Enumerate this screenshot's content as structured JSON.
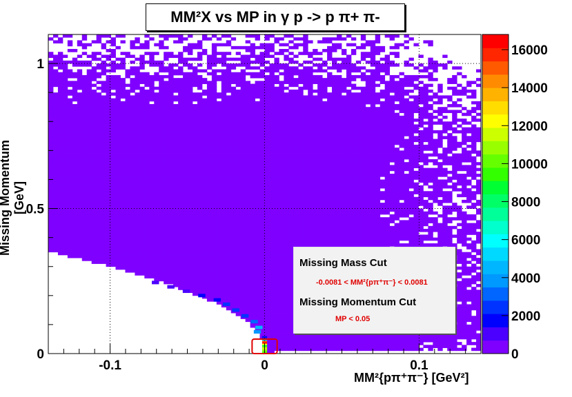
{
  "chart_data": {
    "type": "heatmap",
    "title": "MM²X vs MP in γ p -> p π+ π-",
    "xlabel": "MM²{pπ⁺π⁻} [GeV²]",
    "ylabel": "Missing Momentum [GeV]",
    "xlim": [
      -0.14,
      0.14
    ],
    "ylim": [
      0,
      1.1
    ],
    "xticks": [
      -0.1,
      0,
      0.1
    ],
    "xtick_labels": [
      "-0.1",
      "0",
      "0.1"
    ],
    "yticks": [
      0,
      0.5,
      1
    ],
    "ytick_labels": [
      "0",
      "0.5",
      "1"
    ],
    "grid": true,
    "colorbar": {
      "min": 0,
      "max": 16800,
      "ticks": [
        0,
        2000,
        4000,
        6000,
        8000,
        10000,
        12000,
        14000,
        16000
      ],
      "tick_labels": [
        "0",
        "2000",
        "4000",
        "6000",
        "8000",
        "10000",
        "12000",
        "14000",
        "16000"
      ],
      "colors": [
        "#7f00ff",
        "#4b00ff",
        "#0000ff",
        "#0033ff",
        "#0066ff",
        "#0099ff",
        "#00b7ff",
        "#00d9ff",
        "#00ffff",
        "#00ffcc",
        "#00ff99",
        "#00ff66",
        "#00ff33",
        "#33ff00",
        "#66ff00",
        "#99ff00",
        "#ccff00",
        "#ffff00",
        "#ffdd00",
        "#ffb300",
        "#ff8c00",
        "#ff5a00",
        "#ff2600",
        "#ff0000"
      ]
    },
    "cut_box": {
      "x": [
        -0.0081,
        0.0081
      ],
      "y": [
        0,
        0.05
      ]
    },
    "peak_column": {
      "x": 0,
      "bins": [
        {
          "y": 0.0025,
          "value": 9200
        },
        {
          "y": 0.0075,
          "value": 10400
        },
        {
          "y": 0.0125,
          "value": 10800
        },
        {
          "y": 0.0175,
          "value": 11300
        },
        {
          "y": 0.0225,
          "value": 10500
        },
        {
          "y": 0.0275,
          "value": 9000
        },
        {
          "y": 0.0325,
          "value": 12500
        },
        {
          "y": 0.0375,
          "value": 16500
        },
        {
          "y": 0.0425,
          "value": 15200
        },
        {
          "y": 0.0475,
          "value": 4500
        },
        {
          "y": 0.0525,
          "value": 2600
        },
        {
          "y": 0.0575,
          "value": 1800
        }
      ]
    },
    "band_hotspots": [
      {
        "x": -0.003,
        "y": 0.09,
        "value": 4200
      },
      {
        "x": -0.004,
        "y": 0.075,
        "value": 3600
      },
      {
        "x": -0.006,
        "y": 0.11,
        "value": 3000
      },
      {
        "x": -0.012,
        "y": 0.13,
        "value": 2600
      },
      {
        "x": -0.018,
        "y": 0.15,
        "value": 2400
      },
      {
        "x": -0.024,
        "y": 0.17,
        "value": 2100
      },
      {
        "x": -0.03,
        "y": 0.185,
        "value": 1900
      },
      {
        "x": -0.04,
        "y": 0.2,
        "value": 1600
      },
      {
        "x": -0.05,
        "y": 0.215,
        "value": 1200
      },
      {
        "x": -0.06,
        "y": 0.23,
        "value": 900
      },
      {
        "x": -0.07,
        "y": 0.245,
        "value": 700
      }
    ],
    "annotation": {
      "header1": "Missing Mass Cut",
      "cut1": "-0.0081 < MM²{pπ⁺π⁻} < 0.0081",
      "header2": "Missing Momentum Cut",
      "cut2": "MP < 0.05"
    }
  }
}
